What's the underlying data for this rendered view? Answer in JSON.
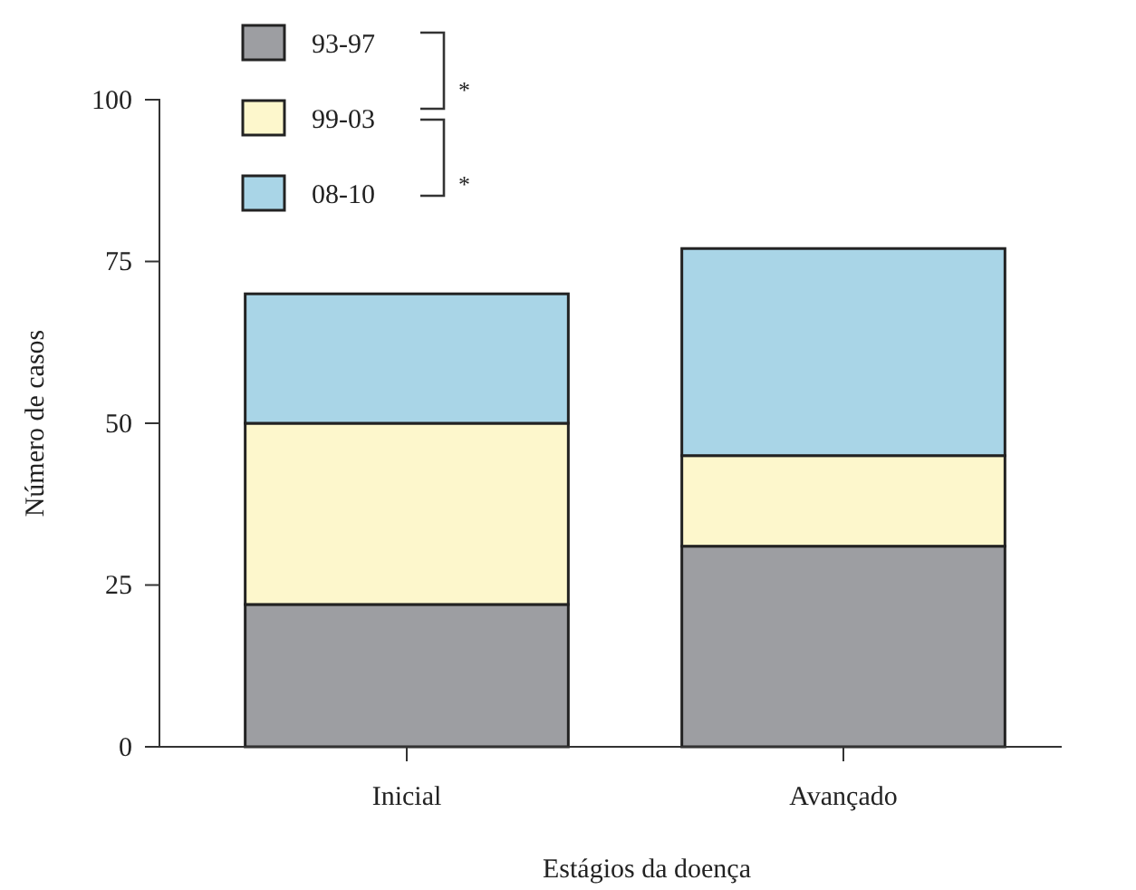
{
  "chart_data": {
    "type": "bar",
    "stacked": true,
    "xlabel": "Estágios da doença",
    "ylabel": "Número de casos",
    "categories": [
      "Inicial",
      "Avançado"
    ],
    "series": [
      {
        "name": "93-97",
        "color": "#9d9ea2",
        "values": [
          22,
          31
        ]
      },
      {
        "name": "99-03",
        "color": "#fdf7cc",
        "values": [
          28,
          14
        ]
      },
      {
        "name": "08-10",
        "color": "#a9d5e7",
        "values": [
          20,
          32
        ]
      }
    ],
    "ylim": [
      0,
      100
    ],
    "yticks": [
      0,
      25,
      50,
      75,
      100
    ],
    "grid": false,
    "legend": "top left",
    "annotations": [
      "*",
      "*"
    ]
  }
}
